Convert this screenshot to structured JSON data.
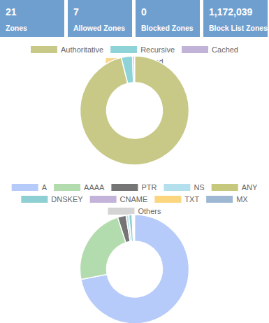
{
  "cards": [
    {
      "value": "21",
      "label": "Zones"
    },
    {
      "value": "7",
      "label": "Allowed Zones"
    },
    {
      "value": "0",
      "label": "Blocked Zones"
    },
    {
      "value": "1,172,039",
      "label": "Block List Zones"
    }
  ],
  "chart_data": [
    {
      "type": "donut",
      "legend": "top",
      "categories": [
        "Authoritative",
        "Recursive",
        "Cached",
        "Blocked"
      ],
      "values": [
        96.1,
        3.3,
        0.6,
        0
      ],
      "colors": [
        "#c8c987",
        "#8dd3d8",
        "#c1b3d8",
        "#f9d88d"
      ]
    },
    {
      "type": "donut",
      "legend": "top",
      "categories": [
        "A",
        "AAAA",
        "PTR",
        "NS",
        "ANY",
        "DNSKEY",
        "CNAME",
        "TXT",
        "MX",
        "Others"
      ],
      "values": [
        72,
        23,
        2.5,
        0.8,
        0,
        1,
        0.3,
        0.1,
        0.1,
        0.2
      ],
      "colors": [
        "#b6cbfa",
        "#b3dcae",
        "#757575",
        "#b4e0ed",
        "#c6c87e",
        "#8ecfd4",
        "#c4b3d8",
        "#fcd67f",
        "#9eb8d4",
        "#d4d4d4"
      ]
    }
  ]
}
